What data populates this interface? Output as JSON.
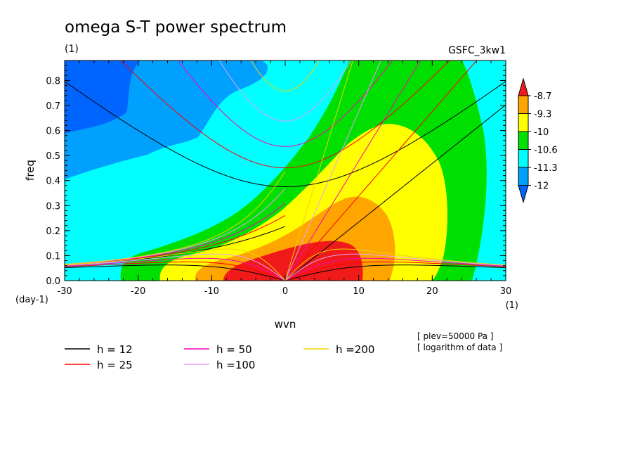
{
  "chart_data": {
    "type": "heatmap",
    "title": "omega S-T power spectrum",
    "subtitle": "(1)",
    "model_label": "GSFC_3kw1",
    "xlabel": "wvn",
    "ylabel": "freq",
    "x_unit": "(1)",
    "y_unit": "(day-1)",
    "xlim": [
      -30,
      30
    ],
    "ylim": [
      0,
      0.88
    ],
    "xticks": [
      "-30",
      "-20",
      "-10",
      "0",
      "10",
      "20",
      "30"
    ],
    "yticks": [
      "0.0",
      "0.1",
      "0.2",
      "0.3",
      "0.4",
      "0.5",
      "0.6",
      "0.7",
      "0.8"
    ],
    "colorbar": {
      "labels": [
        "-8.7",
        "-9.3",
        "-10",
        "-10.6",
        "-11.3",
        "-12"
      ],
      "colors": [
        "#f01a1a",
        "#ffa500",
        "#ffff00",
        "#00e000",
        "#00ffff",
        "#00a0ff",
        "#0064ff"
      ]
    },
    "notes": [
      "[ plev=50000 Pa ]",
      "[ logarithm of data ]"
    ],
    "dispersion_curves": [
      {
        "label": "h = 12",
        "h": 12,
        "color": "#000000"
      },
      {
        "label": "h = 25",
        "h": 25,
        "color": "#ff0000"
      },
      {
        "label": "h = 50",
        "h": 50,
        "color": "#ff00b4"
      },
      {
        "label": "h =100",
        "h": 100,
        "color": "#e6a0ff"
      },
      {
        "label": "h =200",
        "h": 200,
        "color": "#f0d200"
      }
    ]
  }
}
